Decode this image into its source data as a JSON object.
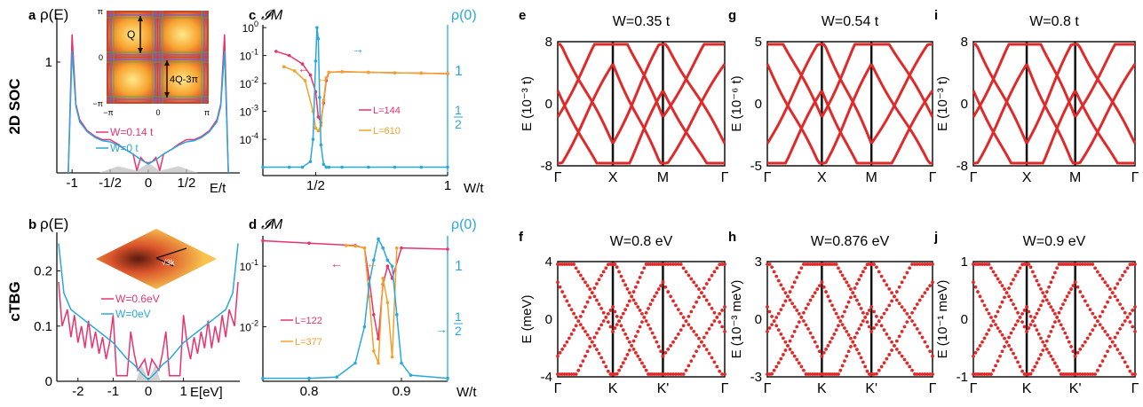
{
  "row_labels": [
    "2D SOC",
    "cTBG"
  ],
  "colors": {
    "magenta": "#e8336f",
    "blue": "#2aa7de",
    "orange": "#f2a22a",
    "red": "#e02a2a",
    "axis": "#111111"
  },
  "chart_data": [
    {
      "panel": "a",
      "type": "line",
      "ylabel": "ρ(E)",
      "xlabel": "E/t",
      "xlim": [
        -1.2,
        1.2
      ],
      "ylim": [
        0,
        1.4
      ],
      "x_ticks": [
        "-1",
        "-1/2",
        "0",
        "1/2"
      ],
      "x_tick_values": [
        -1,
        -0.5,
        0,
        0.5
      ],
      "y_ticks": [
        "1"
      ],
      "y_tick_values": [
        1
      ],
      "series": [
        {
          "name": "W=0.14 t",
          "color": "magenta",
          "x": [
            -1.05,
            -1.0,
            -0.95,
            -0.9,
            -0.8,
            -0.7,
            -0.6,
            -0.5,
            -0.4,
            -0.3,
            -0.2,
            -0.15,
            -0.1,
            -0.05,
            0,
            0.05,
            0.1,
            0.15,
            0.2,
            0.3,
            0.4,
            0.5,
            0.6,
            0.7,
            0.8,
            0.9,
            0.95,
            1.0,
            1.05
          ],
          "y": [
            0,
            1.25,
            0.62,
            0.48,
            0.38,
            0.33,
            0.3,
            0.3,
            0.26,
            0.21,
            0.17,
            0.02,
            0.14,
            0.1,
            0.09,
            0.1,
            0.14,
            0.02,
            0.17,
            0.21,
            0.26,
            0.3,
            0.3,
            0.33,
            0.38,
            0.48,
            0.62,
            1.25,
            0
          ]
        },
        {
          "name": "W=0 t",
          "color": "blue",
          "x": [
            -1.05,
            -1.0,
            -0.95,
            -0.9,
            -0.8,
            -0.7,
            -0.6,
            -0.5,
            -0.4,
            -0.3,
            -0.2,
            -0.1,
            0,
            0.1,
            0.2,
            0.3,
            0.4,
            0.5,
            0.6,
            0.7,
            0.8,
            0.9,
            0.95,
            1.0,
            1.05
          ],
          "y": [
            0,
            1.1,
            0.6,
            0.46,
            0.37,
            0.32,
            0.29,
            0.28,
            0.25,
            0.21,
            0.17,
            0.12,
            0.08,
            0.12,
            0.17,
            0.21,
            0.25,
            0.28,
            0.29,
            0.32,
            0.37,
            0.46,
            0.6,
            1.1,
            0
          ]
        }
      ],
      "inset": {
        "labels": [
          "Q",
          "4Q-3π"
        ],
        "x_ticks": [
          "−π",
          "0",
          "π"
        ],
        "y_ticks": [
          "π",
          "0",
          "−π"
        ]
      }
    },
    {
      "panel": "b",
      "type": "line",
      "ylabel": "ρ(E)",
      "xlabel": "E[eV]",
      "xlim": [
        -2.6,
        2.6
      ],
      "ylim": [
        0,
        0.27
      ],
      "x_ticks": [
        "-2",
        "-1",
        "0",
        "1"
      ],
      "x_tick_values": [
        -2,
        -1,
        0,
        1
      ],
      "y_ticks": [
        "0",
        "0.1",
        "0.2"
      ],
      "y_tick_values": [
        0,
        0.1,
        0.2
      ],
      "series": [
        {
          "name": "W=0.6eV",
          "color": "magenta",
          "x": [
            -2.55,
            -2.45,
            -2.3,
            -2.2,
            -2.1,
            -2.0,
            -1.9,
            -1.8,
            -1.7,
            -1.6,
            -1.5,
            -1.4,
            -1.3,
            -1.2,
            -1.1,
            -1.0,
            -0.9,
            -0.8,
            -0.7,
            -0.6,
            -0.5,
            -0.4,
            -0.3,
            -0.2,
            -0.1,
            0,
            0.1,
            0.2,
            0.3,
            0.4,
            0.5,
            0.6,
            0.7,
            0.8,
            0.9,
            1.0,
            1.1,
            1.2,
            1.3,
            1.4,
            1.5,
            1.6,
            1.7,
            1.8,
            1.9,
            2.0,
            2.1,
            2.2,
            2.3,
            2.45,
            2.55
          ],
          "y": [
            0.18,
            0.1,
            0.13,
            0.08,
            0.12,
            0.07,
            0.1,
            0.06,
            0.11,
            0.06,
            0.09,
            0.05,
            0.08,
            0.04,
            0.07,
            0.12,
            0.01,
            0.01,
            0.01,
            0.01,
            0.09,
            0.05,
            0.02,
            0.03,
            0.04,
            0.01,
            0.04,
            0.03,
            0.02,
            0.05,
            0.09,
            0.01,
            0.01,
            0.01,
            0.01,
            0.12,
            0.07,
            0.04,
            0.08,
            0.05,
            0.09,
            0.06,
            0.11,
            0.06,
            0.1,
            0.07,
            0.12,
            0.08,
            0.13,
            0.1,
            0.18
          ]
        },
        {
          "name": "W=0eV",
          "color": "blue",
          "x": [
            -2.55,
            -2.4,
            -2.2,
            -2.0,
            -1.8,
            -1.6,
            -1.4,
            -1.2,
            -1.0,
            -0.8,
            -0.6,
            -0.4,
            -0.2,
            0,
            0.2,
            0.4,
            0.6,
            0.8,
            1.0,
            1.2,
            1.4,
            1.6,
            1.8,
            2.0,
            2.2,
            2.4,
            2.55
          ],
          "y": [
            0.25,
            0.16,
            0.13,
            0.12,
            0.11,
            0.1,
            0.09,
            0.08,
            0.07,
            0.055,
            0.04,
            0.03,
            0.015,
            0.003,
            0.015,
            0.03,
            0.04,
            0.055,
            0.07,
            0.08,
            0.09,
            0.1,
            0.11,
            0.12,
            0.13,
            0.16,
            0.25
          ]
        }
      ]
    },
    {
      "panel": "c",
      "type": "line",
      "ylabel": "𝓘M",
      "ylabel_right": "ρ(0)",
      "xlabel": "W/t",
      "xlim": [
        0.3,
        1.0
      ],
      "ylim_log": [
        -5.3,
        0.1
      ],
      "yscale": "log",
      "x_ticks": [
        "1/2",
        "1"
      ],
      "x_tick_values": [
        0.5,
        1.0
      ],
      "y_ticks": [
        "10^0",
        "10^-1",
        "10^-2",
        "10^-3",
        "10^-4"
      ],
      "y_tick_values": [
        0,
        -1,
        -2,
        -3,
        -4
      ],
      "right_ticks": [
        "1",
        "1/2"
      ],
      "series": [
        {
          "name": "L=144",
          "color": "magenta",
          "x": [
            0.35,
            0.4,
            0.45,
            0.48,
            0.5,
            0.51,
            0.52,
            0.53,
            0.54,
            0.55,
            0.6,
            0.7,
            0.8,
            0.9,
            1.0
          ],
          "y": [
            -0.85,
            -1.0,
            -1.3,
            -1.7,
            -2.3,
            -3.2,
            -3.4,
            -2.7,
            -1.9,
            -1.6,
            -1.58,
            -1.6,
            -1.62,
            -1.63,
            -1.65
          ]
        },
        {
          "name": "L=610",
          "color": "orange",
          "x": [
            0.38,
            0.42,
            0.46,
            0.49,
            0.5,
            0.51,
            0.52,
            0.53,
            0.54,
            0.55,
            0.6,
            0.7,
            0.8,
            0.9,
            1.0
          ],
          "y": [
            -1.4,
            -1.55,
            -1.9,
            -3.0,
            -3.6,
            -3.7,
            -3.5,
            -2.6,
            -1.8,
            -1.6,
            -1.58,
            -1.6,
            -1.62,
            -1.63,
            -1.65
          ]
        },
        {
          "name": "ρ(0)",
          "color": "blue",
          "x": [
            0.3,
            0.4,
            0.45,
            0.48,
            0.49,
            0.5,
            0.505,
            0.51,
            0.515,
            0.52,
            0.53,
            0.54,
            0.55,
            0.6,
            0.7,
            0.8,
            0.9,
            1.0
          ],
          "y": [
            -5.0,
            -5.0,
            -5.0,
            -4.8,
            -4.0,
            -1.2,
            0.0,
            -0.4,
            -2.5,
            -4.2,
            -4.9,
            -5.0,
            -5.0,
            -5.0,
            -5.0,
            -5.0,
            -5.0,
            -5.0
          ]
        }
      ]
    },
    {
      "panel": "d",
      "type": "line",
      "ylabel": "𝓘M",
      "ylabel_right": "ρ(0)",
      "xlabel": "W/t",
      "xlim": [
        0.75,
        0.95
      ],
      "ylim_log": [
        -2.9,
        -0.5
      ],
      "yscale": "log",
      "x_ticks": [
        "0.8",
        "0.9"
      ],
      "x_tick_values": [
        0.8,
        0.9
      ],
      "y_ticks": [
        "10^-1",
        "10^-2"
      ],
      "y_tick_values": [
        -1,
        -2
      ],
      "right_ticks": [
        "1",
        "1/2"
      ],
      "series": [
        {
          "name": "L=122",
          "color": "magenta",
          "x": [
            0.75,
            0.8,
            0.85,
            0.86,
            0.865,
            0.87,
            0.875,
            0.88,
            0.885,
            0.89,
            0.9,
            0.95
          ],
          "y": [
            -0.58,
            -0.62,
            -0.66,
            -0.7,
            -1.2,
            -1.8,
            -2.2,
            -1.3,
            -1.0,
            -1.2,
            -0.7,
            -0.72
          ]
        },
        {
          "name": "L=377",
          "color": "orange",
          "x": [
            0.84,
            0.85,
            0.86,
            0.865,
            0.87,
            0.875,
            0.88,
            0.885,
            0.89,
            0.895
          ],
          "y": [
            -0.66,
            -0.67,
            -0.7,
            -1.5,
            -2.4,
            -2.6,
            -1.2,
            -1.6,
            -2.5,
            -0.7
          ]
        },
        {
          "name": "ρ(0)",
          "color": "blue",
          "x": [
            0.75,
            0.8,
            0.83,
            0.85,
            0.86,
            0.865,
            0.87,
            0.875,
            0.88,
            0.885,
            0.89,
            0.895,
            0.9,
            0.91,
            0.95
          ],
          "y": [
            -2.85,
            -2.85,
            -2.83,
            -2.6,
            -2.0,
            -1.3,
            -0.9,
            -0.55,
            -0.7,
            -0.9,
            -1.0,
            -1.8,
            -2.6,
            -2.8,
            -2.85
          ]
        }
      ]
    },
    {
      "panel": "e",
      "type": "line",
      "title": "W=0.35 t",
      "ylabel": "E (10⁻³ t)",
      "y_ticks": [
        "8",
        "0",
        "-8"
      ],
      "x_ticks": [
        "Γ",
        "X",
        "M",
        "Γ"
      ]
    },
    {
      "panel": "g",
      "type": "line",
      "title": "W=0.54 t",
      "ylabel": "E (10⁻⁶ t)",
      "y_ticks": [
        "5",
        "0",
        "-5"
      ],
      "x_ticks": [
        "Γ",
        "X",
        "M",
        "Γ"
      ]
    },
    {
      "panel": "i",
      "type": "line",
      "title": "W=0.8 t",
      "ylabel": "E (10⁻³ t)",
      "y_ticks": [
        "8",
        "0",
        "-8"
      ],
      "x_ticks": [
        "Γ",
        "X",
        "M",
        "Γ"
      ]
    },
    {
      "panel": "f",
      "type": "scatter",
      "title": "W=0.8 eV",
      "ylabel": "E (meV)",
      "y_ticks": [
        "4",
        "0",
        "-4"
      ],
      "x_ticks": [
        "Γ",
        "K",
        "K'",
        "Γ"
      ]
    },
    {
      "panel": "h",
      "type": "scatter",
      "title": "W=0.876 eV",
      "ylabel": "E (10⁻³ meV)",
      "y_ticks": [
        "3",
        "0",
        "-3"
      ],
      "x_ticks": [
        "Γ",
        "K",
        "K'",
        "Γ"
      ]
    },
    {
      "panel": "j",
      "type": "scatter",
      "title": "W=0.9 eV",
      "ylabel": "E (10⁻¹ meV)",
      "y_ticks": [
        "1",
        "0",
        "-1"
      ],
      "x_ticks": [
        "Γ",
        "K",
        "K'",
        "Γ"
      ]
    }
  ]
}
